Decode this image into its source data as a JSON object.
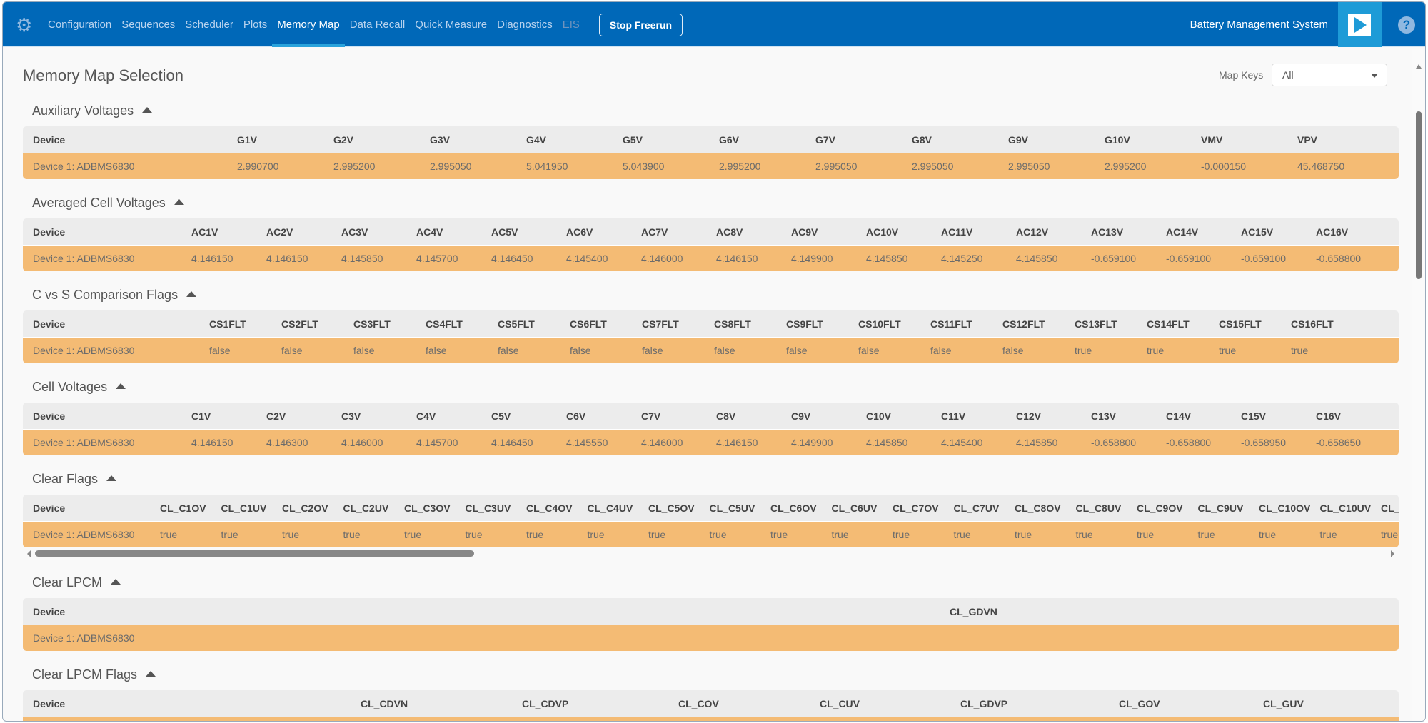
{
  "nav": {
    "items": [
      {
        "label": "Configuration",
        "state": "normal"
      },
      {
        "label": "Sequences",
        "state": "normal"
      },
      {
        "label": "Scheduler",
        "state": "normal"
      },
      {
        "label": "Plots",
        "state": "normal"
      },
      {
        "label": "Memory Map",
        "state": "active"
      },
      {
        "label": "Data Recall",
        "state": "normal"
      },
      {
        "label": "Quick Measure",
        "state": "normal"
      },
      {
        "label": "Diagnostics",
        "state": "normal"
      },
      {
        "label": "EIS",
        "state": "disabled"
      }
    ],
    "stop_label": "Stop Freerun",
    "app_title": "Battery Management System",
    "help_glyph": "?"
  },
  "colors": {
    "topbar": "#0068b8",
    "row": "#f4bb74",
    "header_row": "#ececec"
  },
  "page_title": "Memory Map Selection",
  "map_keys": {
    "label": "Map Keys",
    "value": "All"
  },
  "sections": [
    {
      "title": "Auxiliary Voltages",
      "columns": [
        "Device",
        "G1V",
        "G2V",
        "G3V",
        "G4V",
        "G5V",
        "G6V",
        "G7V",
        "G8V",
        "G9V",
        "G10V",
        "VMV",
        "VPV"
      ],
      "rows": [
        [
          "Device 1: ADBMS6830",
          "2.990700",
          "2.995200",
          "2.995050",
          "5.041950",
          "5.043900",
          "2.995200",
          "2.995050",
          "2.995050",
          "2.995050",
          "2.995200",
          "-0.000150",
          "45.468750"
        ]
      ]
    },
    {
      "title": "Averaged Cell Voltages",
      "columns": [
        "Device",
        "AC1V",
        "AC2V",
        "AC3V",
        "AC4V",
        "AC5V",
        "AC6V",
        "AC7V",
        "AC8V",
        "AC9V",
        "AC10V",
        "AC11V",
        "AC12V",
        "AC13V",
        "AC14V",
        "AC15V",
        "AC16V"
      ],
      "rows": [
        [
          "Device 1: ADBMS6830",
          "4.146150",
          "4.146150",
          "4.145850",
          "4.145700",
          "4.146450",
          "4.145400",
          "4.146000",
          "4.146150",
          "4.149900",
          "4.145850",
          "4.145250",
          "4.145850",
          "-0.659100",
          "-0.659100",
          "-0.659100",
          "-0.658800"
        ]
      ]
    },
    {
      "title": "C vs S Comparison Flags",
      "columns": [
        "Device",
        "CS1FLT",
        "CS2FLT",
        "CS3FLT",
        "CS4FLT",
        "CS5FLT",
        "CS6FLT",
        "CS7FLT",
        "CS8FLT",
        "CS9FLT",
        "CS10FLT",
        "CS11FLT",
        "CS12FLT",
        "CS13FLT",
        "CS14FLT",
        "CS15FLT",
        "CS16FLT"
      ],
      "rows": [
        [
          "Device 1: ADBMS6830",
          "false",
          "false",
          "false",
          "false",
          "false",
          "false",
          "false",
          "false",
          "false",
          "false",
          "false",
          "false",
          "true",
          "true",
          "true",
          "true"
        ]
      ]
    },
    {
      "title": "Cell Voltages",
      "columns": [
        "Device",
        "C1V",
        "C2V",
        "C3V",
        "C4V",
        "C5V",
        "C6V",
        "C7V",
        "C8V",
        "C9V",
        "C10V",
        "C11V",
        "C12V",
        "C13V",
        "C14V",
        "C15V",
        "C16V"
      ],
      "rows": [
        [
          "Device 1: ADBMS6830",
          "4.146150",
          "4.146300",
          "4.146000",
          "4.145700",
          "4.146450",
          "4.145550",
          "4.146000",
          "4.146150",
          "4.149900",
          "4.145850",
          "4.145400",
          "4.145850",
          "-0.658800",
          "-0.658800",
          "-0.658950",
          "-0.658650"
        ]
      ]
    },
    {
      "title": "Clear Flags",
      "columns": [
        "Device",
        "CL_C1OV",
        "CL_C1UV",
        "CL_C2OV",
        "CL_C2UV",
        "CL_C3OV",
        "CL_C3UV",
        "CL_C4OV",
        "CL_C4UV",
        "CL_C5OV",
        "CL_C5UV",
        "CL_C6OV",
        "CL_C6UV",
        "CL_C7OV",
        "CL_C7UV",
        "CL_C8OV",
        "CL_C8UV",
        "CL_C9OV",
        "CL_C9UV",
        "CL_C10OV",
        "CL_C10UV",
        "CL_"
      ],
      "rows": [
        [
          "Device 1: ADBMS6830",
          "true",
          "true",
          "true",
          "true",
          "true",
          "true",
          "true",
          "true",
          "true",
          "true",
          "true",
          "true",
          "true",
          "true",
          "true",
          "true",
          "true",
          "true",
          "true",
          "true",
          "true"
        ]
      ]
    },
    {
      "title": "Clear LPCM",
      "columns": [
        "Device",
        "CL_GDVN"
      ],
      "rows": [
        [
          "Device 1: ADBMS6830",
          ""
        ]
      ]
    },
    {
      "title": "Clear LPCM Flags",
      "columns": [
        "Device",
        "CL_CDVN",
        "CL_CDVP",
        "CL_COV",
        "CL_CUV",
        "CL_GDVP",
        "CL_GOV",
        "CL_GUV"
      ],
      "rows": [
        [
          "",
          "",
          "",
          "",
          "",
          "",
          "",
          ""
        ]
      ]
    }
  ]
}
